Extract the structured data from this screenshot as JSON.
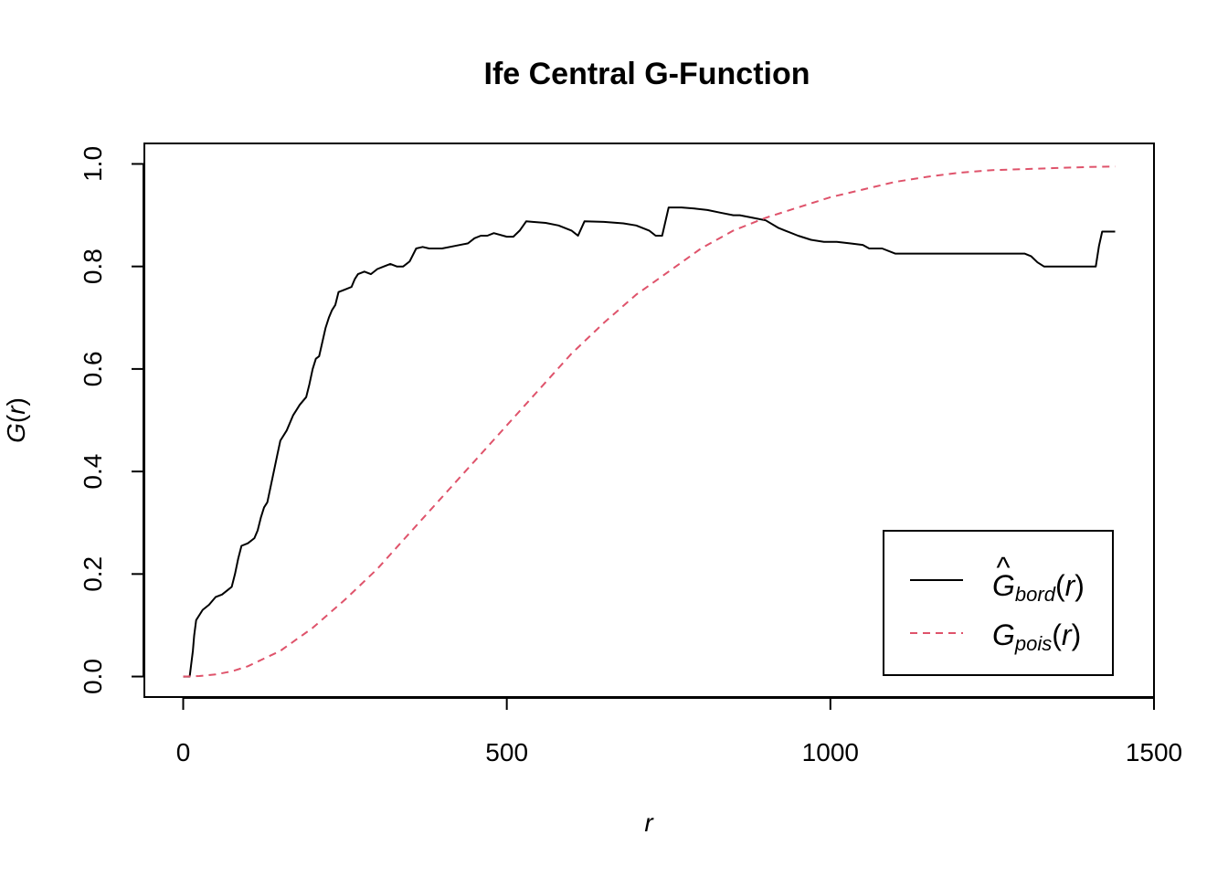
{
  "chart_data": {
    "type": "line",
    "title": "Ife Central G-Function",
    "xlabel": "r",
    "ylabel": {
      "main": "G",
      "arg": "r"
    },
    "xlim": [
      -60,
      1500
    ],
    "ylim": [
      -0.04,
      1.04
    ],
    "x_ticks": [
      0,
      500,
      1000,
      1500
    ],
    "x_tick_labels": [
      "0",
      "500",
      "1000",
      "1500"
    ],
    "y_ticks": [
      0.0,
      0.2,
      0.4,
      0.6,
      0.8,
      1.0
    ],
    "y_tick_labels": [
      "0.0",
      "0.2",
      "0.4",
      "0.6",
      "0.8",
      "1.0"
    ],
    "grid": false,
    "legend_position": "bottom-right",
    "series": [
      {
        "name": "Ĝ_bord(r)",
        "legend": {
          "hat": "^",
          "main": "G",
          "sub": "bord",
          "arg": "r"
        },
        "color": "#000000",
        "dash": "solid",
        "x": [
          0,
          10,
          12,
          15,
          17,
          20,
          30,
          40,
          50,
          60,
          70,
          75,
          80,
          85,
          90,
          100,
          110,
          115,
          120,
          125,
          130,
          140,
          145,
          150,
          160,
          170,
          175,
          180,
          190,
          195,
          200,
          205,
          210,
          220,
          225,
          230,
          235,
          240,
          250,
          260,
          265,
          270,
          280,
          290,
          300,
          310,
          320,
          330,
          340,
          350,
          360,
          370,
          380,
          390,
          400,
          420,
          440,
          450,
          460,
          470,
          480,
          500,
          510,
          520,
          530,
          540,
          560,
          580,
          600,
          610,
          620,
          650,
          680,
          700,
          720,
          730,
          740,
          750,
          770,
          790,
          810,
          830,
          850,
          860,
          880,
          900,
          920,
          930,
          950,
          970,
          990,
          1010,
          1030,
          1050,
          1060,
          1080,
          1100,
          1150,
          1200,
          1250,
          1300,
          1310,
          1320,
          1330,
          1360,
          1400,
          1410,
          1415,
          1420,
          1440
        ],
        "y": [
          0.0,
          0.0,
          0.02,
          0.05,
          0.08,
          0.11,
          0.13,
          0.14,
          0.155,
          0.16,
          0.17,
          0.175,
          0.2,
          0.23,
          0.255,
          0.26,
          0.27,
          0.285,
          0.31,
          0.33,
          0.34,
          0.4,
          0.43,
          0.46,
          0.48,
          0.51,
          0.52,
          0.53,
          0.545,
          0.57,
          0.6,
          0.62,
          0.625,
          0.68,
          0.7,
          0.715,
          0.725,
          0.75,
          0.755,
          0.76,
          0.775,
          0.785,
          0.79,
          0.785,
          0.795,
          0.8,
          0.805,
          0.8,
          0.8,
          0.81,
          0.835,
          0.838,
          0.835,
          0.835,
          0.835,
          0.84,
          0.845,
          0.855,
          0.86,
          0.86,
          0.865,
          0.858,
          0.858,
          0.87,
          0.888,
          0.887,
          0.885,
          0.88,
          0.87,
          0.86,
          0.888,
          0.887,
          0.884,
          0.88,
          0.87,
          0.86,
          0.86,
          0.915,
          0.915,
          0.913,
          0.91,
          0.905,
          0.9,
          0.9,
          0.895,
          0.89,
          0.875,
          0.87,
          0.86,
          0.852,
          0.848,
          0.848,
          0.845,
          0.842,
          0.835,
          0.835,
          0.825,
          0.825,
          0.825,
          0.825,
          0.825,
          0.82,
          0.808,
          0.8,
          0.8,
          0.8,
          0.8,
          0.84,
          0.868,
          0.868
        ]
      },
      {
        "name": "G_pois(r)",
        "legend": {
          "hat": "",
          "main": "G",
          "sub": "pois",
          "arg": "r"
        },
        "color": "#DF536B",
        "dash": "dashed",
        "x": [
          0,
          25,
          50,
          75,
          100,
          150,
          200,
          250,
          300,
          350,
          400,
          450,
          500,
          550,
          600,
          650,
          700,
          750,
          800,
          850,
          900,
          950,
          1000,
          1050,
          1100,
          1150,
          1200,
          1250,
          1300,
          1350,
          1400,
          1440
        ],
        "y": [
          0.0,
          0.001,
          0.004,
          0.01,
          0.02,
          0.05,
          0.095,
          0.15,
          0.21,
          0.28,
          0.35,
          0.42,
          0.49,
          0.56,
          0.63,
          0.69,
          0.745,
          0.79,
          0.835,
          0.87,
          0.895,
          0.915,
          0.935,
          0.95,
          0.965,
          0.975,
          0.983,
          0.988,
          0.99,
          0.992,
          0.994,
          0.995
        ]
      }
    ]
  }
}
